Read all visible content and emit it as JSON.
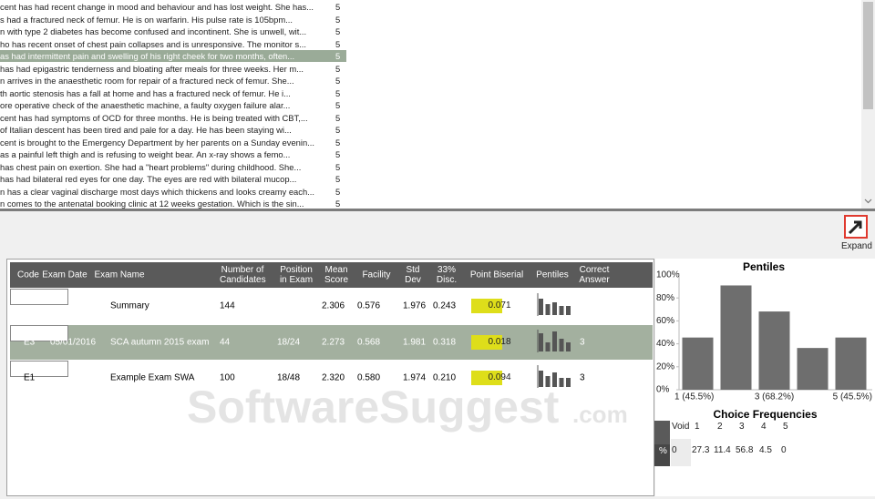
{
  "question_list": {
    "rows": [
      {
        "text": "cent has had recent change in mood and behaviour and has lost weight. She has...",
        "count": "5"
      },
      {
        "text": "s had a fractured neck of femur. He is on warfarin. His pulse rate is 105bpm...",
        "count": "5"
      },
      {
        "text": "n with type 2 diabetes has become confused and incontinent. She is unwell, wit...",
        "count": "5"
      },
      {
        "text": "ho has recent onset of chest pain collapses and is unresponsive. The monitor s...",
        "count": "5"
      },
      {
        "text": "as had intermittent pain and swelling of his right cheek for two months, often...",
        "count": "5"
      },
      {
        "text": "has had epigastric tenderness and bloating after meals for three weeks. Her m...",
        "count": "5"
      },
      {
        "text": "n arrives in the anaesthetic room for repair of a fractured neck of femur. She...",
        "count": "5"
      },
      {
        "text": "th aortic stenosis has a fall at home and has a fractured neck of femur. He i...",
        "count": "5"
      },
      {
        "text": "ore operative check of the anaesthetic machine, a faulty oxygen failure alar...",
        "count": "5"
      },
      {
        "text": "cent has had symptoms of OCD for three months. He is being treated with CBT,...",
        "count": "5"
      },
      {
        "text": "of Italian descent has been tired and pale for a day. He has been staying wi...",
        "count": "5"
      },
      {
        "text": "cent is brought to the Emergency Department by her parents on a Sunday evenin...",
        "count": "5"
      },
      {
        "text": "as a painful left thigh and is refusing to weight bear. An x-ray shows a femo...",
        "count": "5"
      },
      {
        "text": "has chest pain on exertion. She had a \"heart problems\" during childhood. She...",
        "count": "5"
      },
      {
        "text": "has had bilateral red eyes for one day. The eyes are red with bilateral mucop...",
        "count": "5"
      },
      {
        "text": "n has a clear vaginal discharge most days which thickens and looks creamy each...",
        "count": "5"
      },
      {
        "text": "n comes to the antenatal booking clinic at 12 weeks gestation. Which is the sin...",
        "count": "5"
      }
    ],
    "selected": 4
  },
  "expand_button": {
    "label": "Expand"
  },
  "exam_table": {
    "columns": {
      "code": "Code",
      "exam_date": "Exam Date",
      "exam_name": "Exam Name",
      "candidates": "Number of Candidates",
      "position": "Position in Exam",
      "mean": "Mean Score",
      "facility": "Facility",
      "std_dev": "Std Dev",
      "disc": "33% Disc.",
      "point_biserial": "Point Biserial",
      "pentiles": "Pentiles",
      "correct_answer": "Correct Answer"
    },
    "rows": [
      {
        "exam_name": "Summary",
        "candidates": "144",
        "mean": "2.306",
        "facility": "0.576",
        "std_dev": "1.976",
        "disc": "0.243",
        "point_biserial": "0.071"
      },
      {
        "code": "E3",
        "exam_date": "05/01/2016",
        "exam_name": "SCA autumn 2015 exam",
        "candidates": "44",
        "position": "18/24",
        "mean": "2.273",
        "facility": "0.568",
        "std_dev": "1.981",
        "disc": "0.318",
        "point_biserial": "0.018",
        "correct_answer": "3"
      },
      {
        "code": "E1",
        "exam_name": "Example Exam SWA",
        "candidates": "100",
        "position": "18/48",
        "mean": "2.320",
        "facility": "0.580",
        "std_dev": "1.974",
        "disc": "0.210",
        "point_biserial": "0.094",
        "correct_answer": "3"
      }
    ],
    "selected": 1
  },
  "watermark": {
    "name": "SoftwareSuggest",
    "suffix": ".com"
  },
  "chart_data": {
    "type": "bar",
    "title": "Pentiles",
    "categories": [
      "1 (45.5%)",
      null,
      "3 (68.2%)",
      null,
      "5 (45.5%)"
    ],
    "values": [
      45.5,
      90.9,
      68.2,
      36.4,
      45.5
    ],
    "color": "#6e6e6e",
    "ylim": [
      0,
      100
    ],
    "yticks": [
      {
        "value": 0,
        "label": "0%"
      },
      {
        "value": 20,
        "label": "20%"
      },
      {
        "value": 40,
        "label": "40%"
      },
      {
        "value": 60,
        "label": "60%"
      },
      {
        "value": 80,
        "label": "80%"
      },
      {
        "value": 100,
        "label": "100%"
      }
    ],
    "grid": false
  },
  "choice_frequencies": {
    "title": "Choice Frequencies",
    "headers": [
      "Void",
      "1",
      "2",
      "3",
      "4",
      "5"
    ],
    "row_label": "%",
    "values": [
      "0",
      "27.3",
      "11.4",
      "56.8",
      "4.5",
      "0"
    ]
  }
}
